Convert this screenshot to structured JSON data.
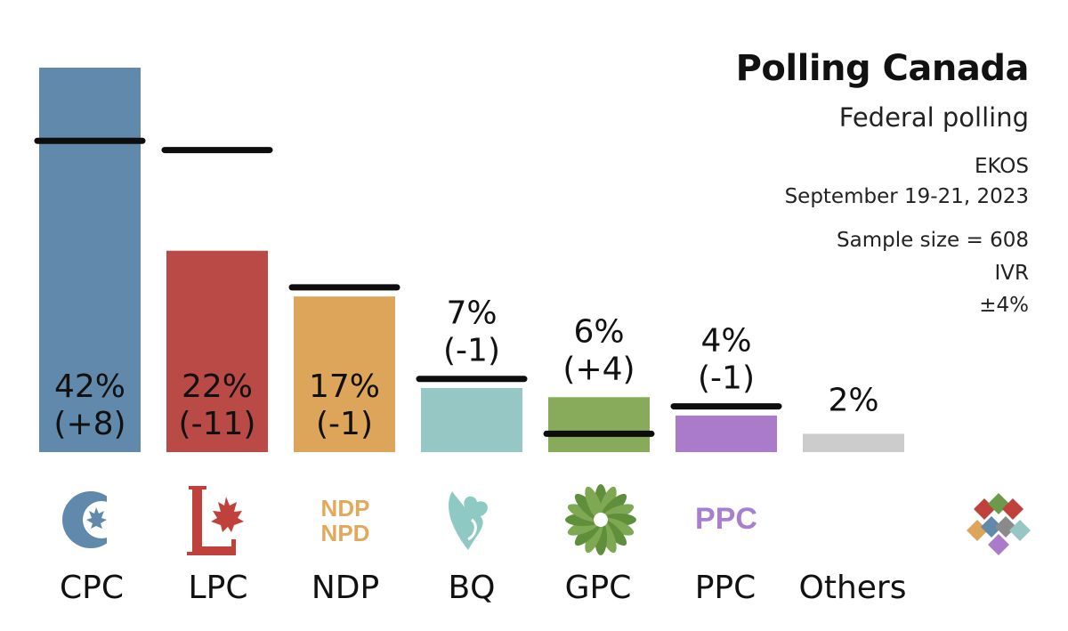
{
  "header": {
    "title": "Polling Canada",
    "subtitle": "Federal polling",
    "pollster": "EKOS",
    "dates": "September 19-21, 2023",
    "sample": "Sample size = 608",
    "method": "IVR",
    "margin": "±4%"
  },
  "chart_data": {
    "type": "bar",
    "title": "Federal polling",
    "categories": [
      "CPC",
      "LPC",
      "NDP",
      "BQ",
      "GPC",
      "PPC",
      "Others"
    ],
    "values": [
      42,
      22,
      17,
      7,
      6,
      4,
      2
    ],
    "changes": [
      "(+8)",
      "(-11)",
      "(-1)",
      "(-1)",
      "(+4)",
      "(-1)",
      ""
    ],
    "value_labels": [
      "42%",
      "22%",
      "17%",
      "7%",
      "6%",
      "4%",
      "2%"
    ],
    "previous_values": [
      34,
      33,
      18,
      8,
      2,
      5,
      null
    ],
    "colors": [
      "#6189ac",
      "#b94a46",
      "#dda55a",
      "#97c7c5",
      "#87aa5b",
      "#a97bc9",
      "#cccccc"
    ],
    "ylim": [
      0,
      42
    ],
    "label_position": [
      "inside",
      "inside",
      "inside",
      "above",
      "above",
      "above",
      "above"
    ],
    "logos": [
      "cpc-logo",
      "lpc-logo",
      "ndp-logo",
      "bq-logo",
      "gpc-logo",
      "ppc-logo",
      "others-logo"
    ],
    "logo_text": {
      "ndp": [
        "NDP",
        "NPD"
      ],
      "ppc": "PPC"
    },
    "xlabel": "",
    "ylabel": ""
  }
}
